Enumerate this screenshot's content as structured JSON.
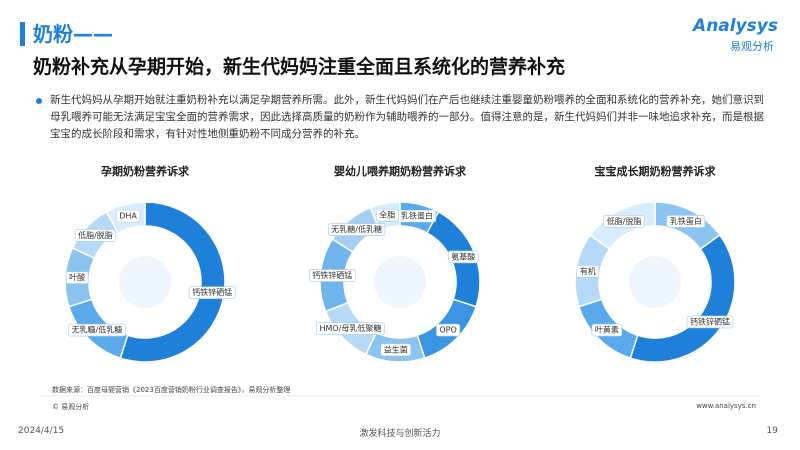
{
  "header": {
    "section": "奶粉——",
    "title": "奶粉补充从孕期开始，新生代妈妈注重全面且系统化的营养补充",
    "logo_brand": "Analysys",
    "logo_name": "易观分析"
  },
  "body": {
    "paragraph": "新生代妈妈从孕期开始就注重奶粉补充以满足孕期营养所需。此外，新生代妈妈们在产后也继续注重婴童奶粉喂养的全面和系统化的营养补充，她们意识到母乳喂养可能无法满足宝宝全面的营养需求，因此选择高质量的奶粉作为辅助喂养的一部分。值得注意的是，新生代妈妈们并非一味地追求补充，而是根据宝宝的成长阶段和需求，有针对性地侧重奶粉不同成分营养的补充。"
  },
  "chart_data": [
    {
      "type": "pie",
      "title": "孕期奶粉营养诉求",
      "categories": [
        "钙铁锌硒锰",
        "无乳糖/低乳糖",
        "叶酸",
        "低脂/脱脂",
        "DHA"
      ],
      "values": [
        55,
        15,
        12,
        10,
        8
      ],
      "colors": [
        "#1f80da",
        "#5aa9ea",
        "#8cc4f0",
        "#b5d9f6",
        "#d9ecfb"
      ]
    },
    {
      "type": "pie",
      "title": "婴幼儿喂养期奶粉营养诉求",
      "categories": [
        "乳铁蛋白",
        "氨基酸",
        "OPO",
        "益生菌",
        "HMO/母乳低聚糖",
        "钙铁锌硒锰",
        "无乳糖/低乳糖",
        "全脂"
      ],
      "values": [
        8,
        22,
        15,
        12,
        12,
        15,
        10,
        6
      ],
      "colors": [
        "#5aa9ea",
        "#1f80da",
        "#3c95e2",
        "#8cc4f0",
        "#b5d9f6",
        "#6fb4ec",
        "#a2cff3",
        "#d9ecfb"
      ]
    },
    {
      "type": "pie",
      "title": "宝宝成长期奶粉营养诉求",
      "categories": [
        "乳铁蛋白",
        "钙铁锌硒锰",
        "叶黄素",
        "有机",
        "低脂/脱脂"
      ],
      "values": [
        15,
        40,
        15,
        15,
        15
      ],
      "colors": [
        "#8cc4f0",
        "#1f80da",
        "#5aa9ea",
        "#b5d9f6",
        "#d9ecfb"
      ]
    }
  ],
  "footer": {
    "source": "数据来源：百度母婴营销《2023百度营销奶粉行业调查报告》，易观分析整理",
    "copyright": "© 易观分析",
    "website": "www.analysys.cn",
    "date": "2024/4/15",
    "slogan": "激发科技与创新活力",
    "page": 19
  }
}
